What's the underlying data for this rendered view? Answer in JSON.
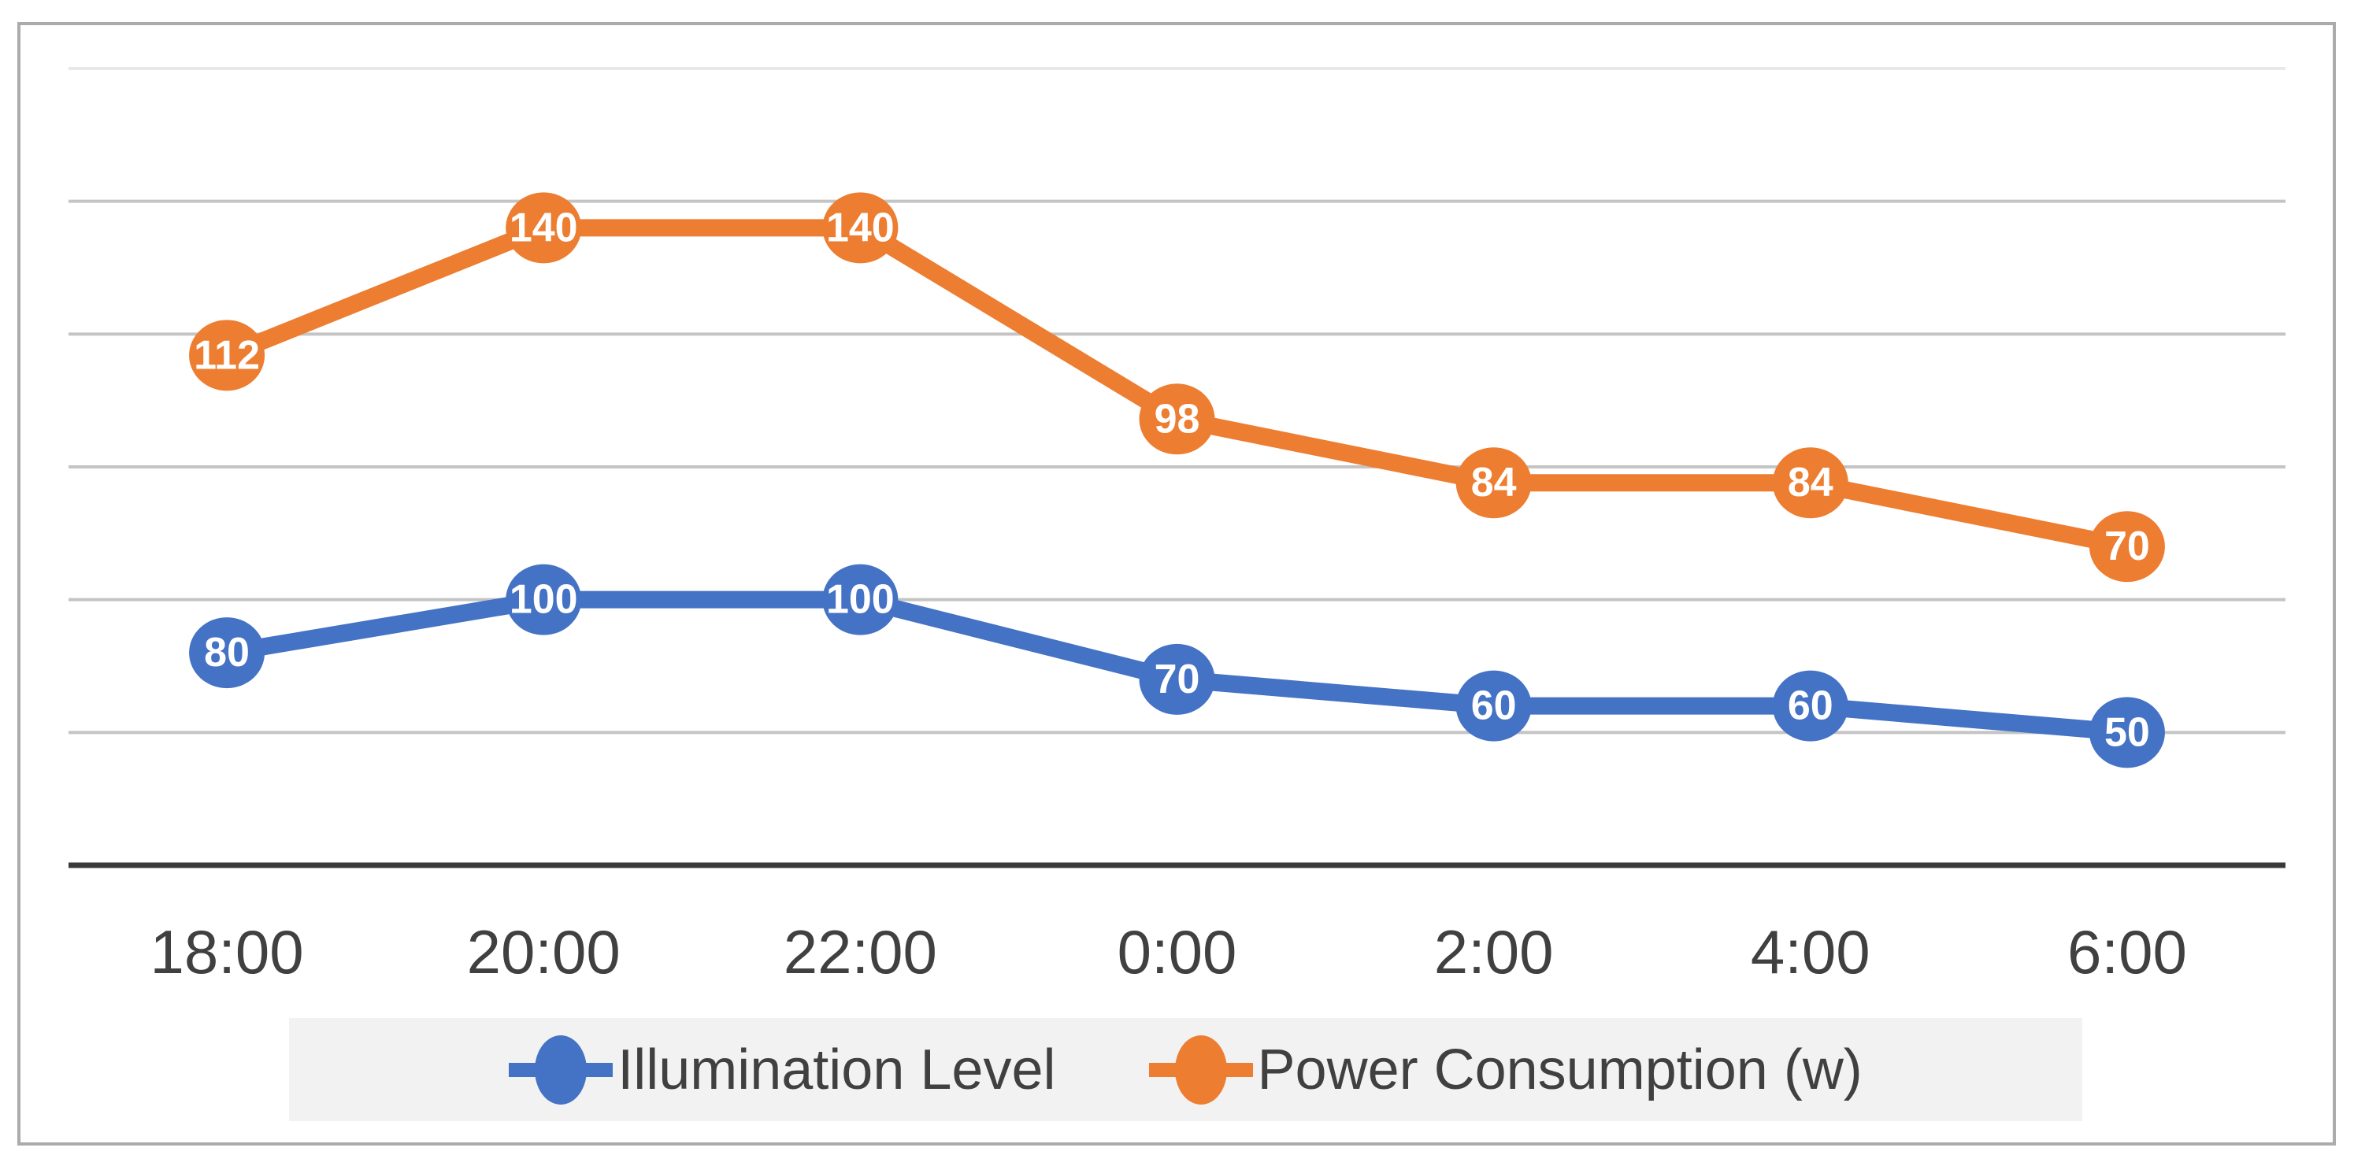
{
  "chart_data": {
    "type": "line",
    "title": "",
    "xlabel": "",
    "ylabel": "",
    "categories": [
      "18:00",
      "20:00",
      "22:00",
      "0:00",
      "2:00",
      "4:00",
      "6:00"
    ],
    "series": [
      {
        "name": "Illumination Level",
        "color": "#4472C4",
        "axis": "primary",
        "values": [
          80,
          100,
          100,
          70,
          60,
          60,
          50
        ],
        "data_labels": [
          "80",
          "100",
          "100",
          "70",
          "60",
          "60",
          "50"
        ]
      },
      {
        "name": "Power Consumption (w)",
        "color": "#ED7D31",
        "axis": "secondary",
        "values": [
          112,
          140,
          140,
          98,
          84,
          84,
          70
        ],
        "data_labels": [
          "112",
          "140",
          "140",
          "98",
          "84",
          "84",
          "70"
        ]
      }
    ],
    "axes": {
      "primary_y": {
        "min": 0,
        "max": 300,
        "major_unit": 50,
        "labels_visible": false
      },
      "secondary_y": {
        "min": 0,
        "max": 175,
        "labels_visible": false,
        "note": "estimated from gridlines"
      },
      "x": {
        "labels_visible": true
      }
    },
    "grid": "horizontal",
    "legend_position": "bottom",
    "marker_style": "large circle with value label inside"
  },
  "legend": {
    "items": [
      {
        "label": "Illumination Level",
        "marker": "line-with-circle",
        "color": "#4472C4"
      },
      {
        "label": "Power Consumption (w)",
        "marker": "line-with-circle",
        "color": "#ED7D31"
      }
    ]
  },
  "colors": {
    "series_blue": "#4472C4",
    "series_orange": "#ED7D31",
    "gridline": "#C4C4C4",
    "gridline_top": "#E8E8E8",
    "axis_line": "#3A3A3A",
    "axis_text": "#404040",
    "marker_label_text": "#FFFFFF",
    "legend_bg": "#F2F2F2",
    "outer_border": "#ABABAB",
    "background": "#FFFFFF"
  }
}
